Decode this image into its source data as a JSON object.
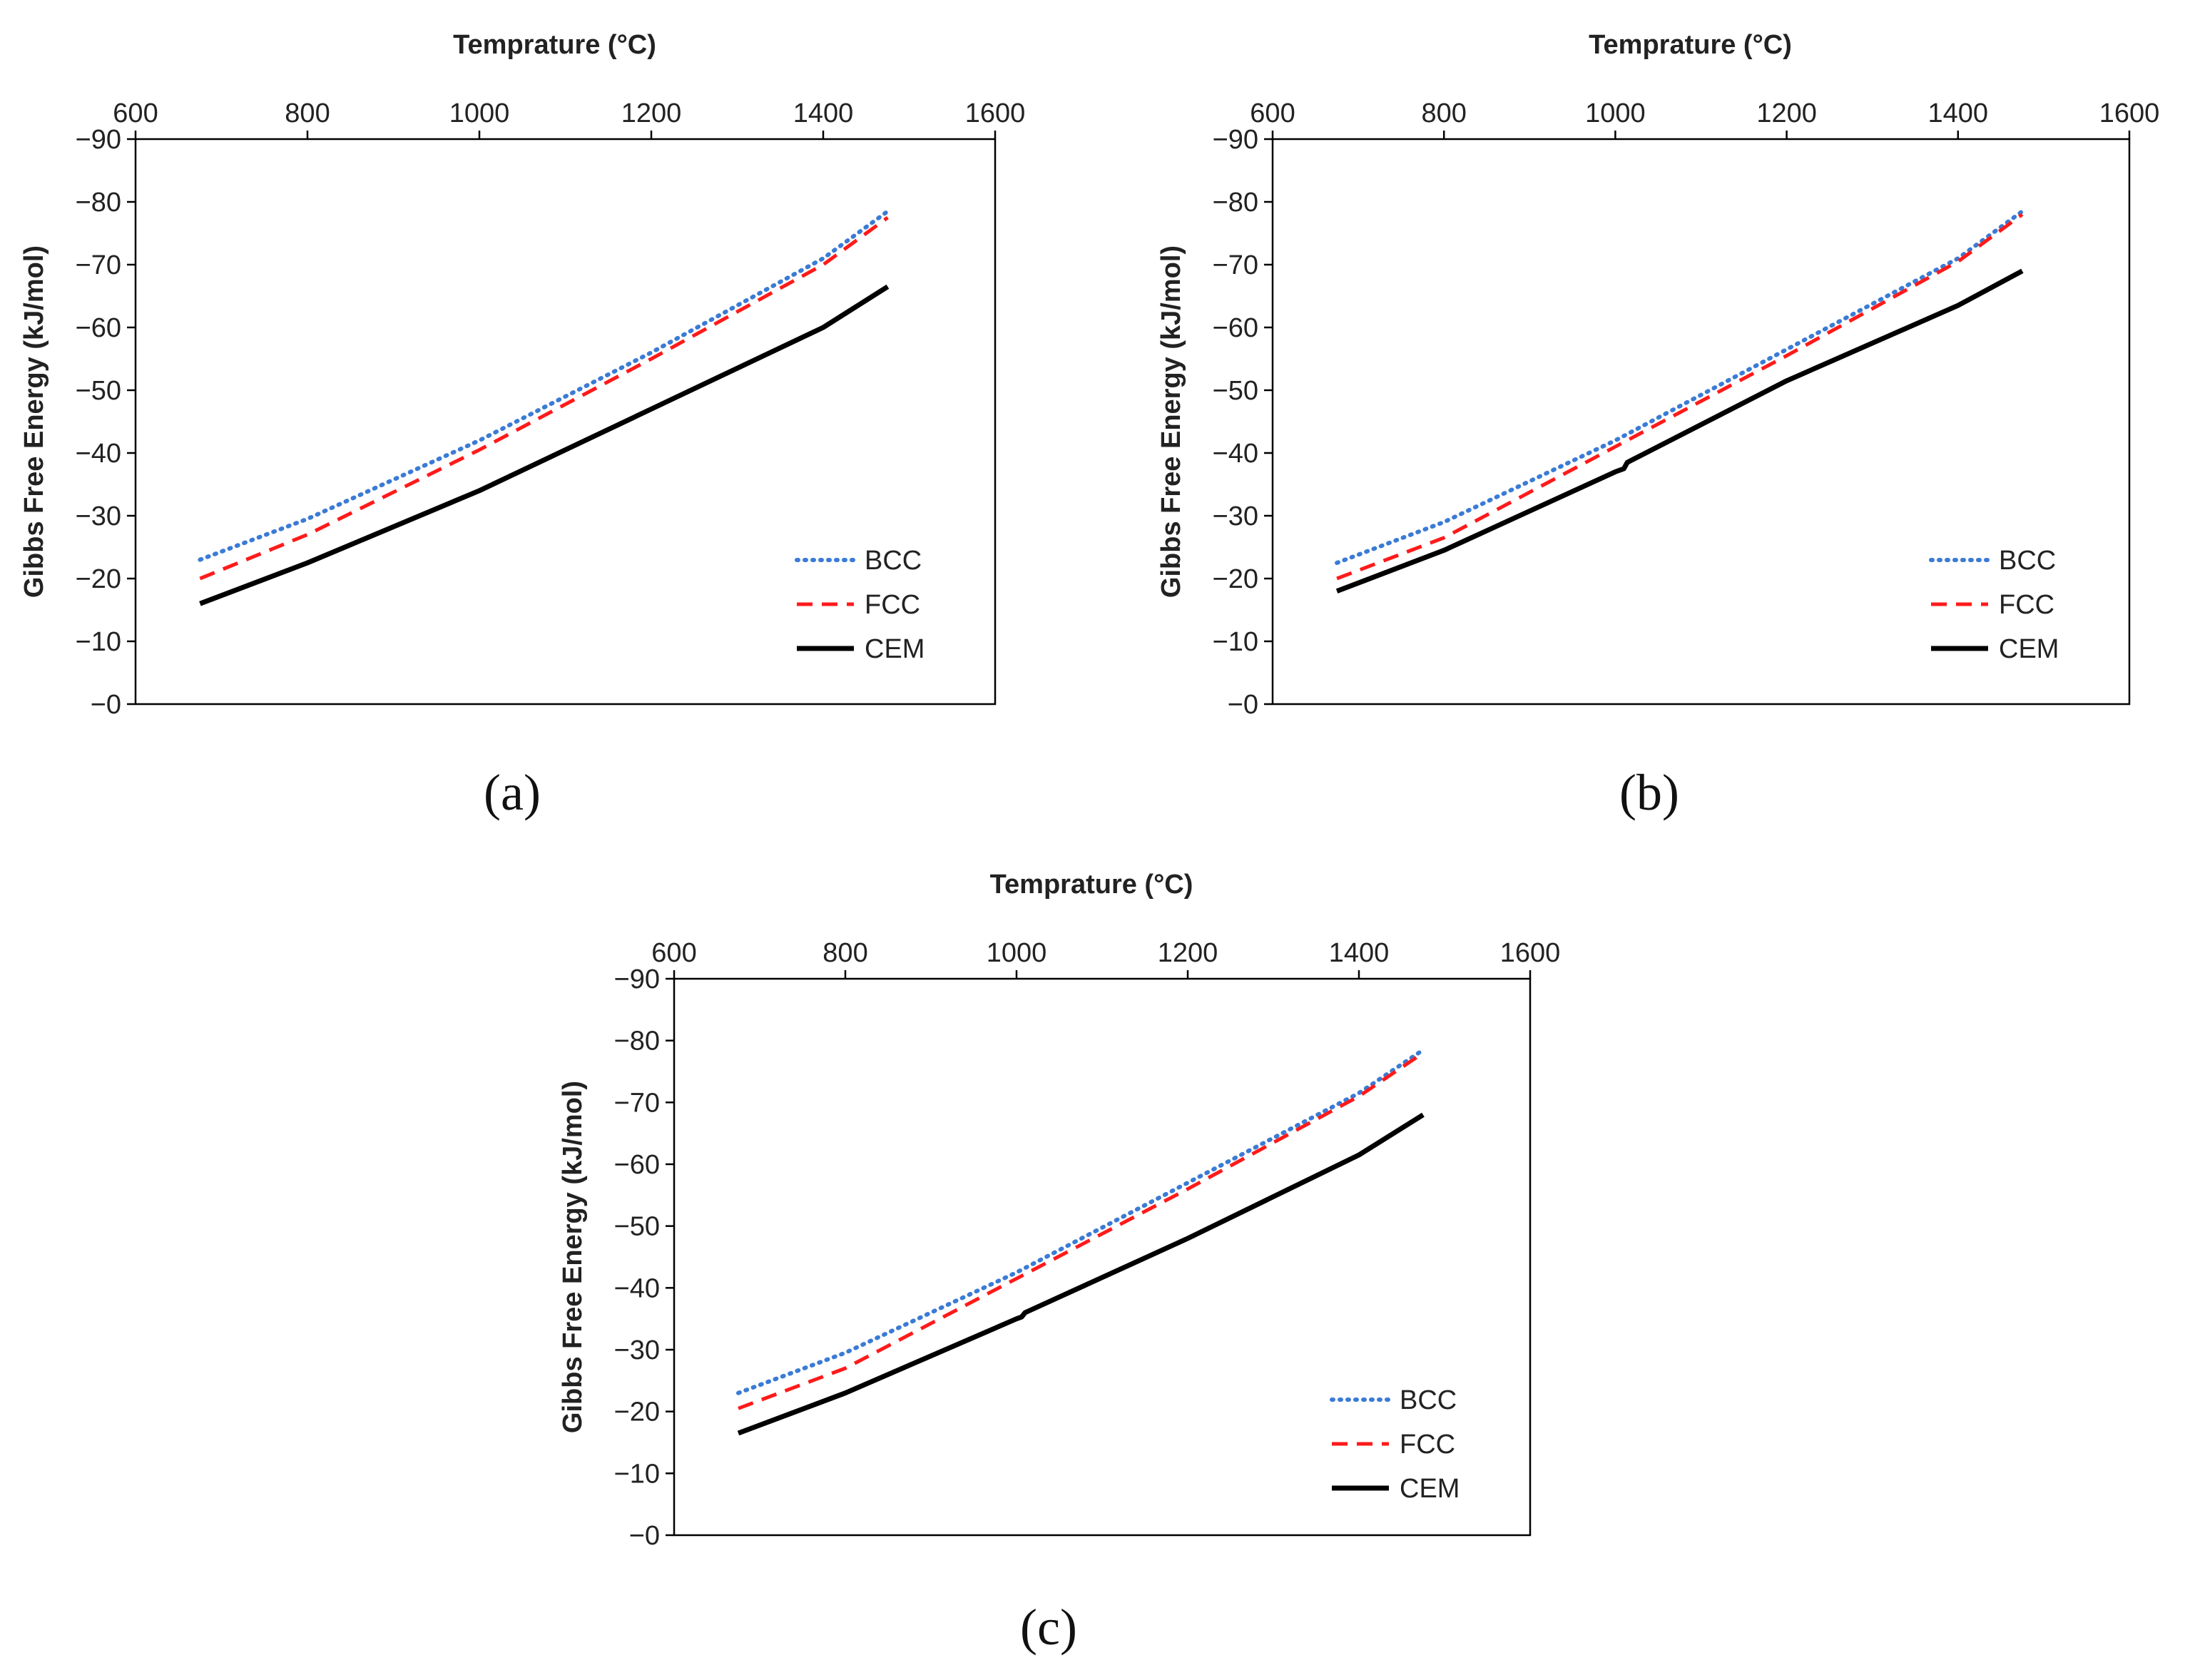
{
  "colors": {
    "bcc": "#3a7bd5",
    "fcc": "#ff1a1a",
    "cem": "#000000",
    "axis": "#000000",
    "text": "#222222"
  },
  "chart_data": [
    {
      "panel": "(a)",
      "type": "line",
      "xlabel": "Temprature (°C)",
      "ylabel": "Gibbs Free Energy (kJ/mol)",
      "xlim": [
        600,
        1600
      ],
      "ylim": [
        0,
        -90
      ],
      "xticks": [
        "600",
        "800",
        "1000",
        "1200",
        "1400",
        "1600"
      ],
      "yticks": [
        "−90",
        "−80",
        "−70",
        "−60",
        "−50",
        "−40",
        "−30",
        "−20",
        "−10",
        "−0"
      ],
      "legend_position": "bottom-right",
      "series": [
        {
          "name": "BCC",
          "style": "dotted",
          "x": [
            675,
            800,
            1000,
            1200,
            1400,
            1475
          ],
          "y": [
            -23,
            -29.5,
            -42,
            -56,
            -71,
            -78.5
          ]
        },
        {
          "name": "FCC",
          "style": "dashed",
          "x": [
            675,
            800,
            1000,
            1200,
            1400,
            1475
          ],
          "y": [
            -20,
            -27,
            -40.5,
            -55,
            -70,
            -77.5
          ]
        },
        {
          "name": "CEM",
          "style": "solid",
          "x": [
            675,
            800,
            1000,
            1200,
            1400,
            1475
          ],
          "y": [
            -16,
            -22.5,
            -34,
            -47,
            -60,
            -66.5
          ]
        }
      ]
    },
    {
      "panel": "(b)",
      "type": "line",
      "xlabel": "Temprature (°C)",
      "ylabel": "Gibbs Free Energy (kJ/mol)",
      "xlim": [
        600,
        1600
      ],
      "ylim": [
        0,
        -90
      ],
      "xticks": [
        "600",
        "800",
        "1000",
        "1200",
        "1400",
        "1600"
      ],
      "yticks": [
        "−90",
        "−80",
        "−70",
        "−60",
        "−50",
        "−40",
        "−30",
        "−20",
        "−10",
        "−0"
      ],
      "legend_position": "bottom-right",
      "series": [
        {
          "name": "BCC",
          "style": "dotted",
          "x": [
            675,
            800,
            1000,
            1200,
            1400,
            1475
          ],
          "y": [
            -22.5,
            -29,
            -42,
            -56.5,
            -71,
            -78.5
          ]
        },
        {
          "name": "FCC",
          "style": "dashed",
          "x": [
            675,
            800,
            1000,
            1200,
            1400,
            1475
          ],
          "y": [
            -20,
            -26.5,
            -41,
            -55.5,
            -70.5,
            -78
          ]
        },
        {
          "name": "CEM",
          "style": "solid",
          "x": [
            675,
            800,
            1000,
            1010,
            1014,
            1200,
            1400,
            1475
          ],
          "y": [
            -18,
            -24.5,
            -37,
            -37.5,
            -38.5,
            -51.5,
            -63.5,
            -69
          ]
        }
      ]
    },
    {
      "panel": "(c)",
      "type": "line",
      "xlabel": "Temprature (°C)",
      "ylabel": "Gibbs Free Energy (kJ/mol)",
      "xlim": [
        600,
        1600
      ],
      "ylim": [
        0,
        -90
      ],
      "xticks": [
        "600",
        "800",
        "1000",
        "1200",
        "1400",
        "1600"
      ],
      "yticks": [
        "−90",
        "−80",
        "−70",
        "−60",
        "−50",
        "−40",
        "−30",
        "−20",
        "−10",
        "−0"
      ],
      "legend_position": "bottom-right",
      "series": [
        {
          "name": "BCC",
          "style": "dotted",
          "x": [
            675,
            800,
            1000,
            1200,
            1400,
            1475
          ],
          "y": [
            -23,
            -29.5,
            -42.5,
            -57,
            -71.5,
            -78.5
          ]
        },
        {
          "name": "FCC",
          "style": "dashed",
          "x": [
            675,
            800,
            1000,
            1200,
            1400,
            1475
          ],
          "y": [
            -20.5,
            -27,
            -41.5,
            -56,
            -71,
            -78
          ]
        },
        {
          "name": "CEM",
          "style": "solid",
          "x": [
            675,
            800,
            1000,
            1006,
            1010,
            1200,
            1400,
            1475
          ],
          "y": [
            -16.5,
            -23,
            -35,
            -35.3,
            -36,
            -48,
            -61.5,
            -68
          ]
        }
      ]
    }
  ]
}
